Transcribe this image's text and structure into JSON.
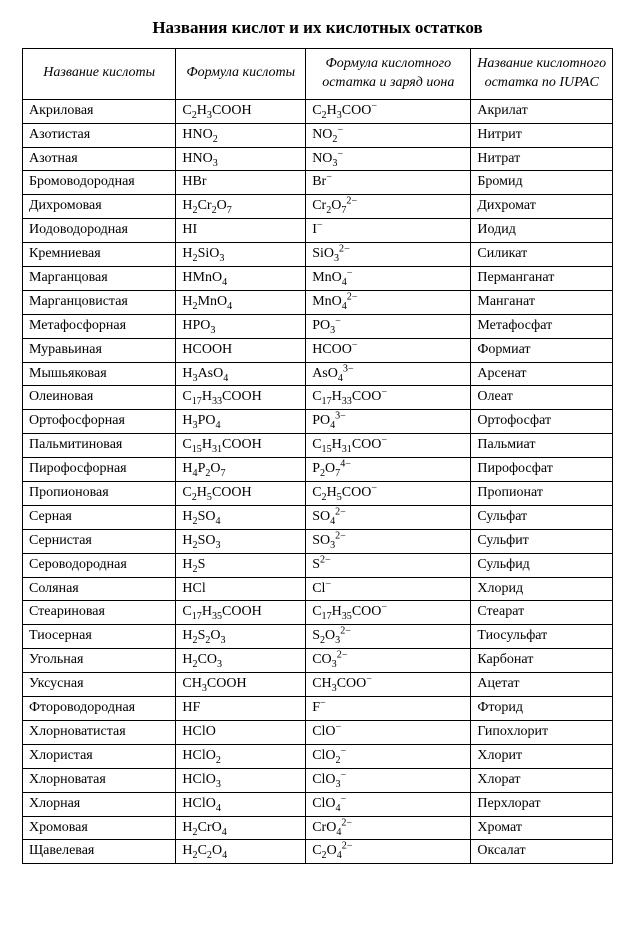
{
  "title": "Названия кислот и их кислотных остатков",
  "columns": [
    "Название кислоты",
    "Формула кислоты",
    "Формула кислотного остатка и заряд иона",
    "Название кислотного остатка по IUPAC"
  ],
  "rows": [
    {
      "name": "Акриловая",
      "formula": "C<sub>2</sub>H<sub>3</sub>COOH",
      "residue": "C<sub>2</sub>H<sub>3</sub>COO<sup>−</sup>",
      "iupac": "Акрилат"
    },
    {
      "name": "Азотистая",
      "formula": "HNO<sub>2</sub>",
      "residue": "NO<sub>2</sub><sup>−</sup>",
      "iupac": "Нитрит"
    },
    {
      "name": "Азотная",
      "formula": "HNO<sub>3</sub>",
      "residue": "NO<sub>3</sub><sup>−</sup>",
      "iupac": "Нитрат"
    },
    {
      "name": "Бромоводородная",
      "formula": "HBr",
      "residue": "Br<sup>−</sup>",
      "iupac": "Бромид"
    },
    {
      "name": "Дихромовая",
      "formula": "H<sub>2</sub>Cr<sub>2</sub>O<sub>7</sub>",
      "residue": "Cr<sub>2</sub>O<sub>7</sub><sup>2−</sup>",
      "iupac": "Дихромат"
    },
    {
      "name": "Иодоводородная",
      "formula": "HI",
      "residue": "I<sup>−</sup>",
      "iupac": "Иодид"
    },
    {
      "name": "Кремниевая",
      "formula": "H<sub>2</sub>SiO<sub>3</sub>",
      "residue": "SiO<sub>3</sub><sup>2−</sup>",
      "iupac": "Силикат"
    },
    {
      "name": "Марганцовая",
      "formula": "HMnO<sub>4</sub>",
      "residue": "MnO<sub>4</sub><sup>−</sup>",
      "iupac": "Перманганат"
    },
    {
      "name": "Марганцовистая",
      "formula": "H<sub>2</sub>MnO<sub>4</sub>",
      "residue": "MnO<sub>4</sub><sup>2−</sup>",
      "iupac": "Манганат"
    },
    {
      "name": "Метафосфорная",
      "formula": "HPO<sub>3</sub>",
      "residue": "PO<sub>3</sub><sup>−</sup>",
      "iupac": "Метафосфат"
    },
    {
      "name": "Муравьиная",
      "formula": "HCOOH",
      "residue": "HCOO<sup>−</sup>",
      "iupac": "Формиат"
    },
    {
      "name": "Мышьяковая",
      "formula": "H<sub>3</sub>AsO<sub>4</sub>",
      "residue": "AsO<sub>4</sub><sup>3−</sup>",
      "iupac": "Арсенат"
    },
    {
      "name": "Олеиновая",
      "formula": "C<sub>17</sub>H<sub>33</sub>COOH",
      "residue": "C<sub>17</sub>H<sub>33</sub>COO<sup>−</sup>",
      "iupac": "Олеат"
    },
    {
      "name": "Ортофосфорная",
      "formula": "H<sub>3</sub>PO<sub>4</sub>",
      "residue": "PO<sub>4</sub><sup>3−</sup>",
      "iupac": "Ортофосфат"
    },
    {
      "name": "Пальмитиновая",
      "formula": "C<sub>15</sub>H<sub>31</sub>COOH",
      "residue": "C<sub>15</sub>H<sub>31</sub>COO<sup>−</sup>",
      "iupac": "Пальмиат"
    },
    {
      "name": "Пирофосфорная",
      "formula": "H<sub>4</sub>P<sub>2</sub>O<sub>7</sub>",
      "residue": "P<sub>2</sub>O<sub>7</sub><sup>4−</sup>",
      "iupac": "Пирофосфат"
    },
    {
      "name": "Пропионовая",
      "formula": "C<sub>2</sub>H<sub>5</sub>COOH",
      "residue": "C<sub>2</sub>H<sub>5</sub>COO<sup>−</sup>",
      "iupac": "Пропионат"
    },
    {
      "name": "Серная",
      "formula": "H<sub>2</sub>SO<sub>4</sub>",
      "residue": "SO<sub>4</sub><sup>2−</sup>",
      "iupac": "Сульфат"
    },
    {
      "name": "Сернистая",
      "formula": "H<sub>2</sub>SO<sub>3</sub>",
      "residue": "SO<sub>3</sub><sup>2−</sup>",
      "iupac": "Сульфит"
    },
    {
      "name": "Сероводородная",
      "formula": "H<sub>2</sub>S",
      "residue": "S<sup>2−</sup>",
      "iupac": "Сульфид"
    },
    {
      "name": "Соляная",
      "formula": "HCl",
      "residue": "Cl<sup>−</sup>",
      "iupac": "Хлорид"
    },
    {
      "name": "Стеариновая",
      "formula": "C<sub>17</sub>H<sub>35</sub>COOH",
      "residue": "C<sub>17</sub>H<sub>35</sub>COO<sup>−</sup>",
      "iupac": "Стеарат"
    },
    {
      "name": "Тиосерная",
      "formula": "H<sub>2</sub>S<sub>2</sub>O<sub>3</sub>",
      "residue": "S<sub>2</sub>O<sub>3</sub><sup>2−</sup>",
      "iupac": "Тиосульфат"
    },
    {
      "name": "Угольная",
      "formula": "H<sub>2</sub>CO<sub>3</sub>",
      "residue": "CO<sub>3</sub><sup>2−</sup>",
      "iupac": "Карбонат"
    },
    {
      "name": "Уксусная",
      "formula": "CH<sub>3</sub>COOH",
      "residue": "CH<sub>3</sub>COO<sup>−</sup>",
      "iupac": "Ацетат"
    },
    {
      "name": "Фтороводородная",
      "formula": "HF",
      "residue": "F<sup>−</sup>",
      "iupac": "Фторид"
    },
    {
      "name": "Хлорноватистая",
      "formula": "HClO",
      "residue": "ClO<sup>−</sup>",
      "iupac": "Гипохлорит"
    },
    {
      "name": "Хлористая",
      "formula": "HClO<sub>2</sub>",
      "residue": "ClO<sub>2</sub><sup>−</sup>",
      "iupac": "Хлорит"
    },
    {
      "name": "Хлорноватая",
      "formula": "HClO<sub>3</sub>",
      "residue": "ClO<sub>3</sub><sup>−</sup>",
      "iupac": "Хлорат"
    },
    {
      "name": "Хлорная",
      "formula": "HClO<sub>4</sub>",
      "residue": "ClO<sub>4</sub><sup>−</sup>",
      "iupac": "Перхлорат"
    },
    {
      "name": "Хромовая",
      "formula": "H<sub>2</sub>CrO<sub>4</sub>",
      "residue": "CrO<sub>4</sub><sup>2−</sup>",
      "iupac": "Хромат"
    },
    {
      "name": "Щавелевая",
      "formula": "H<sub>2</sub>C<sub>2</sub>O<sub>4</sub>",
      "residue": "C<sub>2</sub>O<sub>4</sub><sup>2−</sup>",
      "iupac": "Оксалат"
    }
  ]
}
